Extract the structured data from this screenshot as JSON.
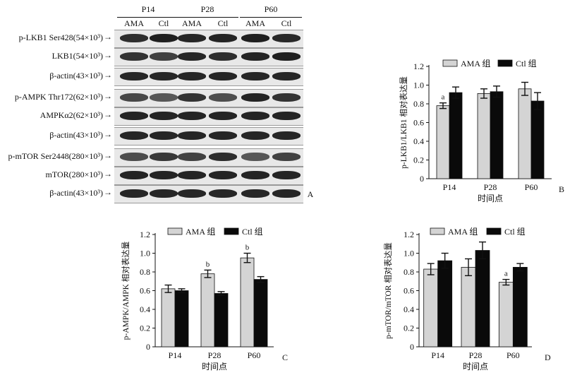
{
  "blot": {
    "panel_letter": "A",
    "time_points": [
      "P14",
      "P28",
      "P60"
    ],
    "lanes": [
      "AMA",
      "Ctl",
      "AMA",
      "Ctl",
      "AMA",
      "Ctl"
    ],
    "rows": [
      {
        "label": "p-LKB1 Ser428(54×10³)",
        "intensity": [
          0.82,
          0.88,
          0.85,
          0.86,
          0.88,
          0.84
        ]
      },
      {
        "label": "LKB1(54×10³)",
        "intensity": [
          0.8,
          0.75,
          0.85,
          0.82,
          0.86,
          0.88
        ]
      },
      {
        "label": "β-actin(43×10³)",
        "intensity": [
          0.85,
          0.85,
          0.85,
          0.85,
          0.85,
          0.85
        ]
      },
      {
        "label": "p-AMPK Thr172(62×10³)",
        "intensity": [
          0.72,
          0.66,
          0.8,
          0.7,
          0.86,
          0.8
        ]
      },
      {
        "label": "AMPKα2(62×10³)",
        "intensity": [
          0.86,
          0.86,
          0.86,
          0.86,
          0.86,
          0.86
        ]
      },
      {
        "label": "β-actin(43×10³)",
        "intensity": [
          0.85,
          0.85,
          0.85,
          0.85,
          0.85,
          0.85
        ]
      },
      {
        "label": "p-mTOR Ser2448(280×10³)",
        "intensity": [
          0.7,
          0.78,
          0.74,
          0.82,
          0.66,
          0.74
        ]
      },
      {
        "label": "mTOR(280×10³)",
        "intensity": [
          0.86,
          0.86,
          0.86,
          0.86,
          0.86,
          0.86
        ]
      },
      {
        "label": "β-actin(43×10³)",
        "intensity": [
          0.85,
          0.85,
          0.85,
          0.85,
          0.85,
          0.85
        ]
      }
    ]
  },
  "chart_data": [
    {
      "panel": "B",
      "type": "bar",
      "categories": [
        "P14",
        "P28",
        "P60"
      ],
      "xlabel": "时间点",
      "ylabel": "p-LKB1/LKB1 相对表达量",
      "ylim": [
        0,
        1.2
      ],
      "yticks": [
        "0",
        "0.2",
        "0.4",
        "0.6",
        "0.8",
        "1.0",
        "1.2"
      ],
      "series": [
        {
          "name": "AMA 组",
          "values": [
            0.78,
            0.91,
            0.96
          ],
          "errors": [
            0.03,
            0.05,
            0.07
          ],
          "color": "#d4d4d4"
        },
        {
          "name": "Ctl 组",
          "values": [
            0.92,
            0.93,
            0.83
          ],
          "errors": [
            0.06,
            0.06,
            0.09
          ],
          "color": "#0a0a0a"
        }
      ],
      "annotations": [
        {
          "category": "P14",
          "series": 0,
          "text": "a"
        }
      ]
    },
    {
      "panel": "C",
      "type": "bar",
      "categories": [
        "P14",
        "P28",
        "P60"
      ],
      "xlabel": "时间点",
      "ylabel": "p-AMPK/AMPK 相对表达量",
      "ylim": [
        0,
        1.2
      ],
      "yticks": [
        "0",
        "0.2",
        "0.4",
        "0.6",
        "0.8",
        "1.0",
        "1.2"
      ],
      "series": [
        {
          "name": "AMA 组",
          "values": [
            0.62,
            0.78,
            0.95
          ],
          "errors": [
            0.04,
            0.04,
            0.05
          ],
          "color": "#d4d4d4"
        },
        {
          "name": "Ctl 组",
          "values": [
            0.6,
            0.57,
            0.72
          ],
          "errors": [
            0.02,
            0.02,
            0.03
          ],
          "color": "#0a0a0a"
        }
      ],
      "annotations": [
        {
          "category": "P28",
          "series": 0,
          "text": "b"
        },
        {
          "category": "P60",
          "series": 0,
          "text": "b"
        }
      ]
    },
    {
      "panel": "D",
      "type": "bar",
      "categories": [
        "P14",
        "P28",
        "P60"
      ],
      "xlabel": "时间点",
      "ylabel": "p-mTOR/mTOR 相对表达量",
      "ylim": [
        0,
        1.2
      ],
      "yticks": [
        "0",
        "0.2",
        "0.4",
        "0.6",
        "0.8",
        "1.0",
        "1.2"
      ],
      "series": [
        {
          "name": "AMA 组",
          "values": [
            0.83,
            0.85,
            0.69
          ],
          "errors": [
            0.06,
            0.09,
            0.03
          ],
          "color": "#d4d4d4"
        },
        {
          "name": "Ctl 组",
          "values": [
            0.92,
            1.03,
            0.85
          ],
          "errors": [
            0.08,
            0.09,
            0.04
          ],
          "color": "#0a0a0a"
        }
      ],
      "annotations": [
        {
          "category": "P60",
          "series": 0,
          "text": "a"
        }
      ]
    }
  ]
}
